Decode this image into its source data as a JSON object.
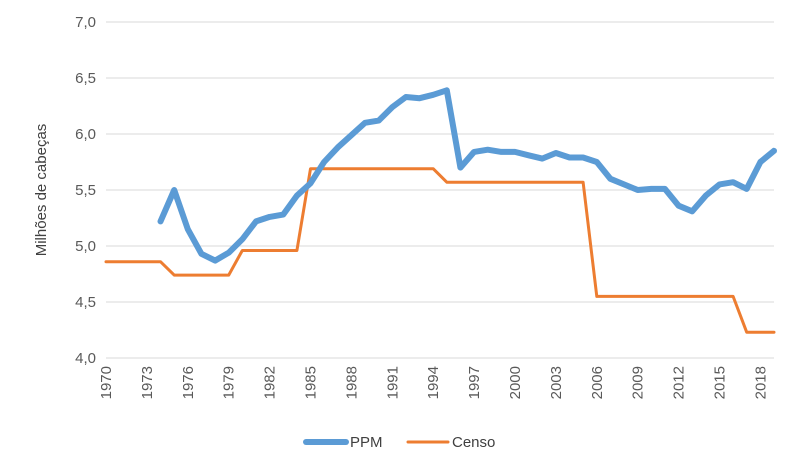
{
  "chart_data": {
    "type": "line",
    "title": "",
    "xlabel": "",
    "ylabel": "Milhões de cabeças",
    "ylim": [
      4.0,
      7.0
    ],
    "xlim": [
      1970,
      2019
    ],
    "y_ticks": [
      "4,0",
      "4,5",
      "5,0",
      "5,5",
      "6,0",
      "6,5",
      "7,0"
    ],
    "x_ticks": [
      "1970",
      "1973",
      "1976",
      "1979",
      "1982",
      "1985",
      "1988",
      "1991",
      "1994",
      "1997",
      "2000",
      "2003",
      "2006",
      "2009",
      "2012",
      "2015",
      "2018"
    ],
    "grid": "horizontal",
    "legend_position": "bottom",
    "series": [
      {
        "name": "PPM",
        "color": "#5b9bd5",
        "points": [
          [
            1974,
            5.22
          ],
          [
            1975,
            5.5
          ],
          [
            1976,
            5.15
          ],
          [
            1977,
            4.93
          ],
          [
            1978,
            4.87
          ],
          [
            1979,
            4.94
          ],
          [
            1980,
            5.06
          ],
          [
            1981,
            5.22
          ],
          [
            1982,
            5.26
          ],
          [
            1983,
            5.28
          ],
          [
            1984,
            5.45
          ],
          [
            1985,
            5.56
          ],
          [
            1986,
            5.75
          ],
          [
            1987,
            5.88
          ],
          [
            1988,
            5.99
          ],
          [
            1989,
            6.1
          ],
          [
            1990,
            6.12
          ],
          [
            1991,
            6.24
          ],
          [
            1992,
            6.33
          ],
          [
            1993,
            6.32
          ],
          [
            1994,
            6.35
          ],
          [
            1995,
            6.39
          ],
          [
            1996,
            5.7
          ],
          [
            1997,
            5.84
          ],
          [
            1998,
            5.86
          ],
          [
            1999,
            5.84
          ],
          [
            2000,
            5.84
          ],
          [
            2001,
            5.81
          ],
          [
            2002,
            5.78
          ],
          [
            2003,
            5.83
          ],
          [
            2004,
            5.79
          ],
          [
            2005,
            5.79
          ],
          [
            2006,
            5.75
          ],
          [
            2007,
            5.6
          ],
          [
            2008,
            5.55
          ],
          [
            2009,
            5.5
          ],
          [
            2010,
            5.51
          ],
          [
            2011,
            5.51
          ],
          [
            2012,
            5.36
          ],
          [
            2013,
            5.31
          ],
          [
            2014,
            5.45
          ],
          [
            2015,
            5.55
          ],
          [
            2016,
            5.57
          ],
          [
            2017,
            5.51
          ],
          [
            2018,
            5.75
          ],
          [
            2019,
            5.85
          ]
        ]
      },
      {
        "name": "Censo",
        "color": "#ed7d31",
        "points": [
          [
            1970,
            4.86
          ],
          [
            1974,
            4.86
          ],
          [
            1975,
            4.74
          ],
          [
            1979,
            4.74
          ],
          [
            1980,
            4.96
          ],
          [
            1984,
            4.96
          ],
          [
            1985,
            5.69
          ],
          [
            1994,
            5.69
          ],
          [
            1995,
            5.57
          ],
          [
            2005,
            5.57
          ],
          [
            2006,
            4.55
          ],
          [
            2016,
            4.55
          ],
          [
            2017,
            4.23
          ],
          [
            2019,
            4.23
          ]
        ]
      }
    ]
  }
}
